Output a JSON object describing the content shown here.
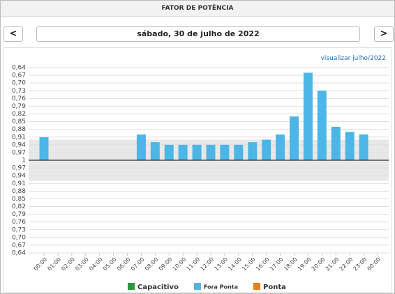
{
  "header": {
    "title": "FATOR DE POTÊNCIA"
  },
  "nav": {
    "prev": "<",
    "date": "sábado, 30 de julho de 2022",
    "next": ">",
    "link": "visualizar julho/2022"
  },
  "chart_data": {
    "type": "bar",
    "categories": [
      "00:00",
      "01:00",
      "02:00",
      "03:00",
      "04:00",
      "05:00",
      "06:00",
      "07:00",
      "08:00",
      "09:00",
      "10:00",
      "11:00",
      "12:00",
      "13:00",
      "14:00",
      "15:00",
      "16:00",
      "17:00",
      "18:00",
      "19:00",
      "20:00",
      "21:00",
      "22:00",
      "23:00",
      "00:00"
    ],
    "series": [
      {
        "name": "Capacitivo",
        "color": "#1e9e3e",
        "side": "capacitive",
        "values": [
          null,
          null,
          null,
          null,
          null,
          null,
          null,
          null,
          null,
          null,
          null,
          null,
          null,
          null,
          null,
          null,
          null,
          null,
          null,
          null,
          null,
          null,
          null,
          null,
          null
        ]
      },
      {
        "name": "Fora Ponta",
        "color": "#4cb6e6",
        "side": "inductive",
        "values": [
          0.91,
          null,
          null,
          null,
          null,
          null,
          null,
          0.9,
          0.93,
          0.94,
          0.94,
          0.94,
          0.94,
          0.94,
          0.94,
          0.93,
          0.92,
          0.9,
          0.83,
          0.66,
          0.73,
          0.87,
          0.89,
          0.9,
          null
        ]
      },
      {
        "name": "Ponta",
        "color": "#e8820c",
        "side": "inductive",
        "values": [
          null,
          null,
          null,
          null,
          null,
          null,
          null,
          null,
          null,
          null,
          null,
          null,
          null,
          null,
          null,
          null,
          null,
          null,
          null,
          null,
          null,
          null,
          null,
          null,
          null
        ]
      }
    ],
    "ylim": [
      0.64,
      1
    ],
    "center_tick": 1,
    "yticks_inductive": [
      {
        "value": 0.64,
        "label": "0,64"
      },
      {
        "value": 0.67,
        "label": "0,67"
      },
      {
        "value": 0.7,
        "label": "0,70"
      },
      {
        "value": 0.73,
        "label": "0,73"
      },
      {
        "value": 0.76,
        "label": "0,76"
      },
      {
        "value": 0.79,
        "label": "0,79"
      },
      {
        "value": 0.82,
        "label": "0,82"
      },
      {
        "value": 0.85,
        "label": "0,85"
      },
      {
        "value": 0.88,
        "label": "0,88"
      },
      {
        "value": 0.91,
        "label": "0,91"
      },
      {
        "value": 0.94,
        "label": "0,94"
      },
      {
        "value": 0.97,
        "label": "0,97"
      }
    ],
    "yticks_capacitive": [
      {
        "value": 0.97,
        "label": "0,97"
      },
      {
        "value": 0.94,
        "label": "0,94"
      },
      {
        "value": 0.91,
        "label": "0,91"
      },
      {
        "value": 0.88,
        "label": "0,88"
      },
      {
        "value": 0.85,
        "label": "0,85"
      },
      {
        "value": 0.82,
        "label": "0,82"
      },
      {
        "value": 0.79,
        "label": "0,79"
      },
      {
        "value": 0.76,
        "label": "0,76"
      },
      {
        "value": 0.73,
        "label": "0,73"
      },
      {
        "value": 0.7,
        "label": "0,70"
      },
      {
        "value": 0.67,
        "label": "0,67"
      },
      {
        "value": 0.64,
        "label": "0,64"
      }
    ],
    "limit": 0.92,
    "grid": true
  }
}
